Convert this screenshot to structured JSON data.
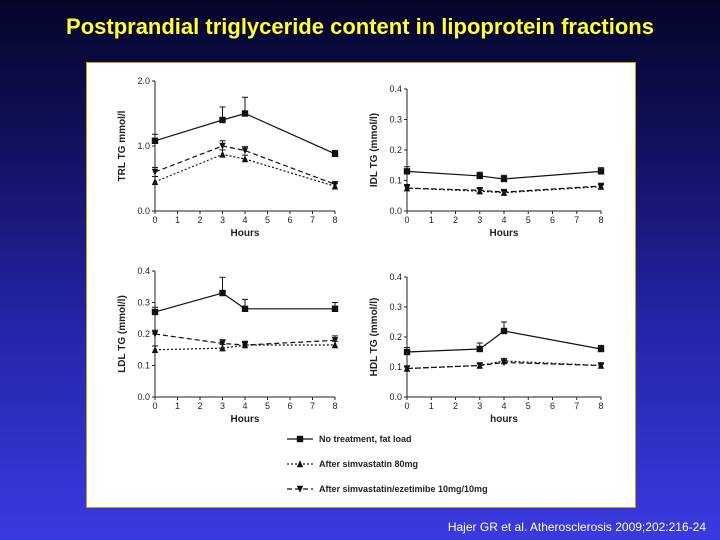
{
  "slide": {
    "title": "Postprandial triglyceride content in lipoprotein fractions",
    "citation": "Hajer GR et al. Atherosclerosis 2009;202:216-24"
  },
  "chart_data": [
    {
      "id": "trl",
      "type": "line",
      "xlabel": "Hours",
      "ylabel": "TRL TG mmol/l",
      "xlim": [
        0,
        8
      ],
      "ylim": [
        0,
        2.0
      ],
      "xticks": [
        "0",
        "1",
        "2",
        "3",
        "4",
        "5",
        "6",
        "7",
        "8"
      ],
      "yticks": [
        "0.0",
        "1.0",
        "2.0"
      ],
      "x": [
        0,
        3,
        4,
        8
      ],
      "series": [
        {
          "name": "No treatment, fat load",
          "values": [
            1.08,
            1.4,
            1.5,
            0.88
          ],
          "err": [
            0.1,
            0.2,
            0.25,
            0.05
          ]
        },
        {
          "name": "After simvastatin 80mg",
          "values": [
            0.45,
            0.87,
            0.8,
            0.38
          ],
          "err": [
            0.08,
            0.07,
            0.06,
            0.04
          ]
        },
        {
          "name": "After simvastatin/ezetimibe 10mg/10mg",
          "values": [
            0.6,
            1.0,
            0.93,
            0.41
          ],
          "err": [
            0.07,
            0.08,
            0.06,
            0.04
          ]
        }
      ]
    },
    {
      "id": "idl",
      "type": "line",
      "xlabel": "Hours",
      "ylabel": "IDL TG (mmol/l)",
      "xlim": [
        0,
        8
      ],
      "ylim": [
        0,
        0.4
      ],
      "xticks": [
        "0",
        "1",
        "2",
        "3",
        "4",
        "5",
        "6",
        "7",
        "8"
      ],
      "yticks": [
        "0.0",
        "0.1",
        "0.2",
        "0.3",
        "0.4"
      ],
      "x": [
        0,
        3,
        4,
        8
      ],
      "series": [
        {
          "name": "No treatment, fat load",
          "values": [
            0.13,
            0.115,
            0.105,
            0.13
          ],
          "err": [
            0.015,
            0.012,
            0.012,
            0.012
          ]
        },
        {
          "name": "After simvastatin 80mg",
          "values": [
            0.075,
            0.065,
            0.06,
            0.08
          ],
          "err": [
            0.01,
            0.008,
            0.006,
            0.006
          ]
        },
        {
          "name": "After simvastatin/ezetimibe 10mg/10mg",
          "values": [
            0.075,
            0.068,
            0.062,
            0.082
          ],
          "err": [
            0.012,
            0.008,
            0.006,
            0.006
          ]
        }
      ]
    },
    {
      "id": "ldl",
      "type": "line",
      "xlabel": "Hours",
      "ylabel": "LDL TG (mmol/l)",
      "xlim": [
        0,
        8
      ],
      "ylim": [
        0,
        0.4
      ],
      "xticks": [
        "0",
        "1",
        "2",
        "3",
        "4",
        "5",
        "6",
        "7",
        "8"
      ],
      "yticks": [
        "0.0",
        "0.1",
        "0.2",
        "0.3",
        "0.4"
      ],
      "x": [
        0,
        3,
        4,
        8
      ],
      "series": [
        {
          "name": "No treatment, fat load",
          "values": [
            0.27,
            0.33,
            0.28,
            0.28
          ],
          "err": [
            0.015,
            0.05,
            0.03,
            0.02
          ]
        },
        {
          "name": "After simvastatin 80mg",
          "values": [
            0.15,
            0.155,
            0.165,
            0.165
          ],
          "err": [
            0.012,
            0.012,
            0.01,
            0.012
          ]
        },
        {
          "name": "After simvastatin/ezetimibe 10mg/10mg",
          "values": [
            0.2,
            0.17,
            0.165,
            0.18
          ],
          "err": [
            0.012,
            0.012,
            0.012,
            0.014
          ]
        }
      ]
    },
    {
      "id": "hdl",
      "type": "line",
      "xlabel": "hours",
      "ylabel": "HDL TG (mmol/l)",
      "xlim": [
        0,
        8
      ],
      "ylim": [
        0,
        0.4
      ],
      "xticks": [
        "0",
        "1",
        "2",
        "3",
        "4",
        "5",
        "6",
        "7",
        "8"
      ],
      "yticks": [
        "0.0",
        "0.1",
        "0.2",
        "0.3",
        "0.4"
      ],
      "x": [
        0,
        3,
        4,
        8
      ],
      "series": [
        {
          "name": "No treatment, fat load",
          "values": [
            0.15,
            0.16,
            0.22,
            0.16
          ],
          "err": [
            0.015,
            0.02,
            0.03,
            0.012
          ]
        },
        {
          "name": "After simvastatin 80mg",
          "values": [
            0.095,
            0.105,
            0.12,
            0.105
          ],
          "err": [
            0.008,
            0.006,
            0.008,
            0.006
          ]
        },
        {
          "name": "After simvastatin/ezetimibe 10mg/10mg",
          "values": [
            0.095,
            0.105,
            0.115,
            0.105
          ],
          "err": [
            0.008,
            0.006,
            0.008,
            0.006
          ]
        }
      ]
    }
  ],
  "legend": {
    "placement": "bottom-center",
    "entries": [
      {
        "label": "No treatment, fat load",
        "marker": "square",
        "line": "solid"
      },
      {
        "label": "After simvastatin 80mg",
        "marker": "triangle-up",
        "line": "dotted"
      },
      {
        "label": "After simvastatin/ezetimibe 10mg/10mg",
        "marker": "triangle-down",
        "line": "dashed"
      }
    ]
  },
  "colors": {
    "series": "#111111",
    "axis": "#222222",
    "title": "#ffff33"
  }
}
